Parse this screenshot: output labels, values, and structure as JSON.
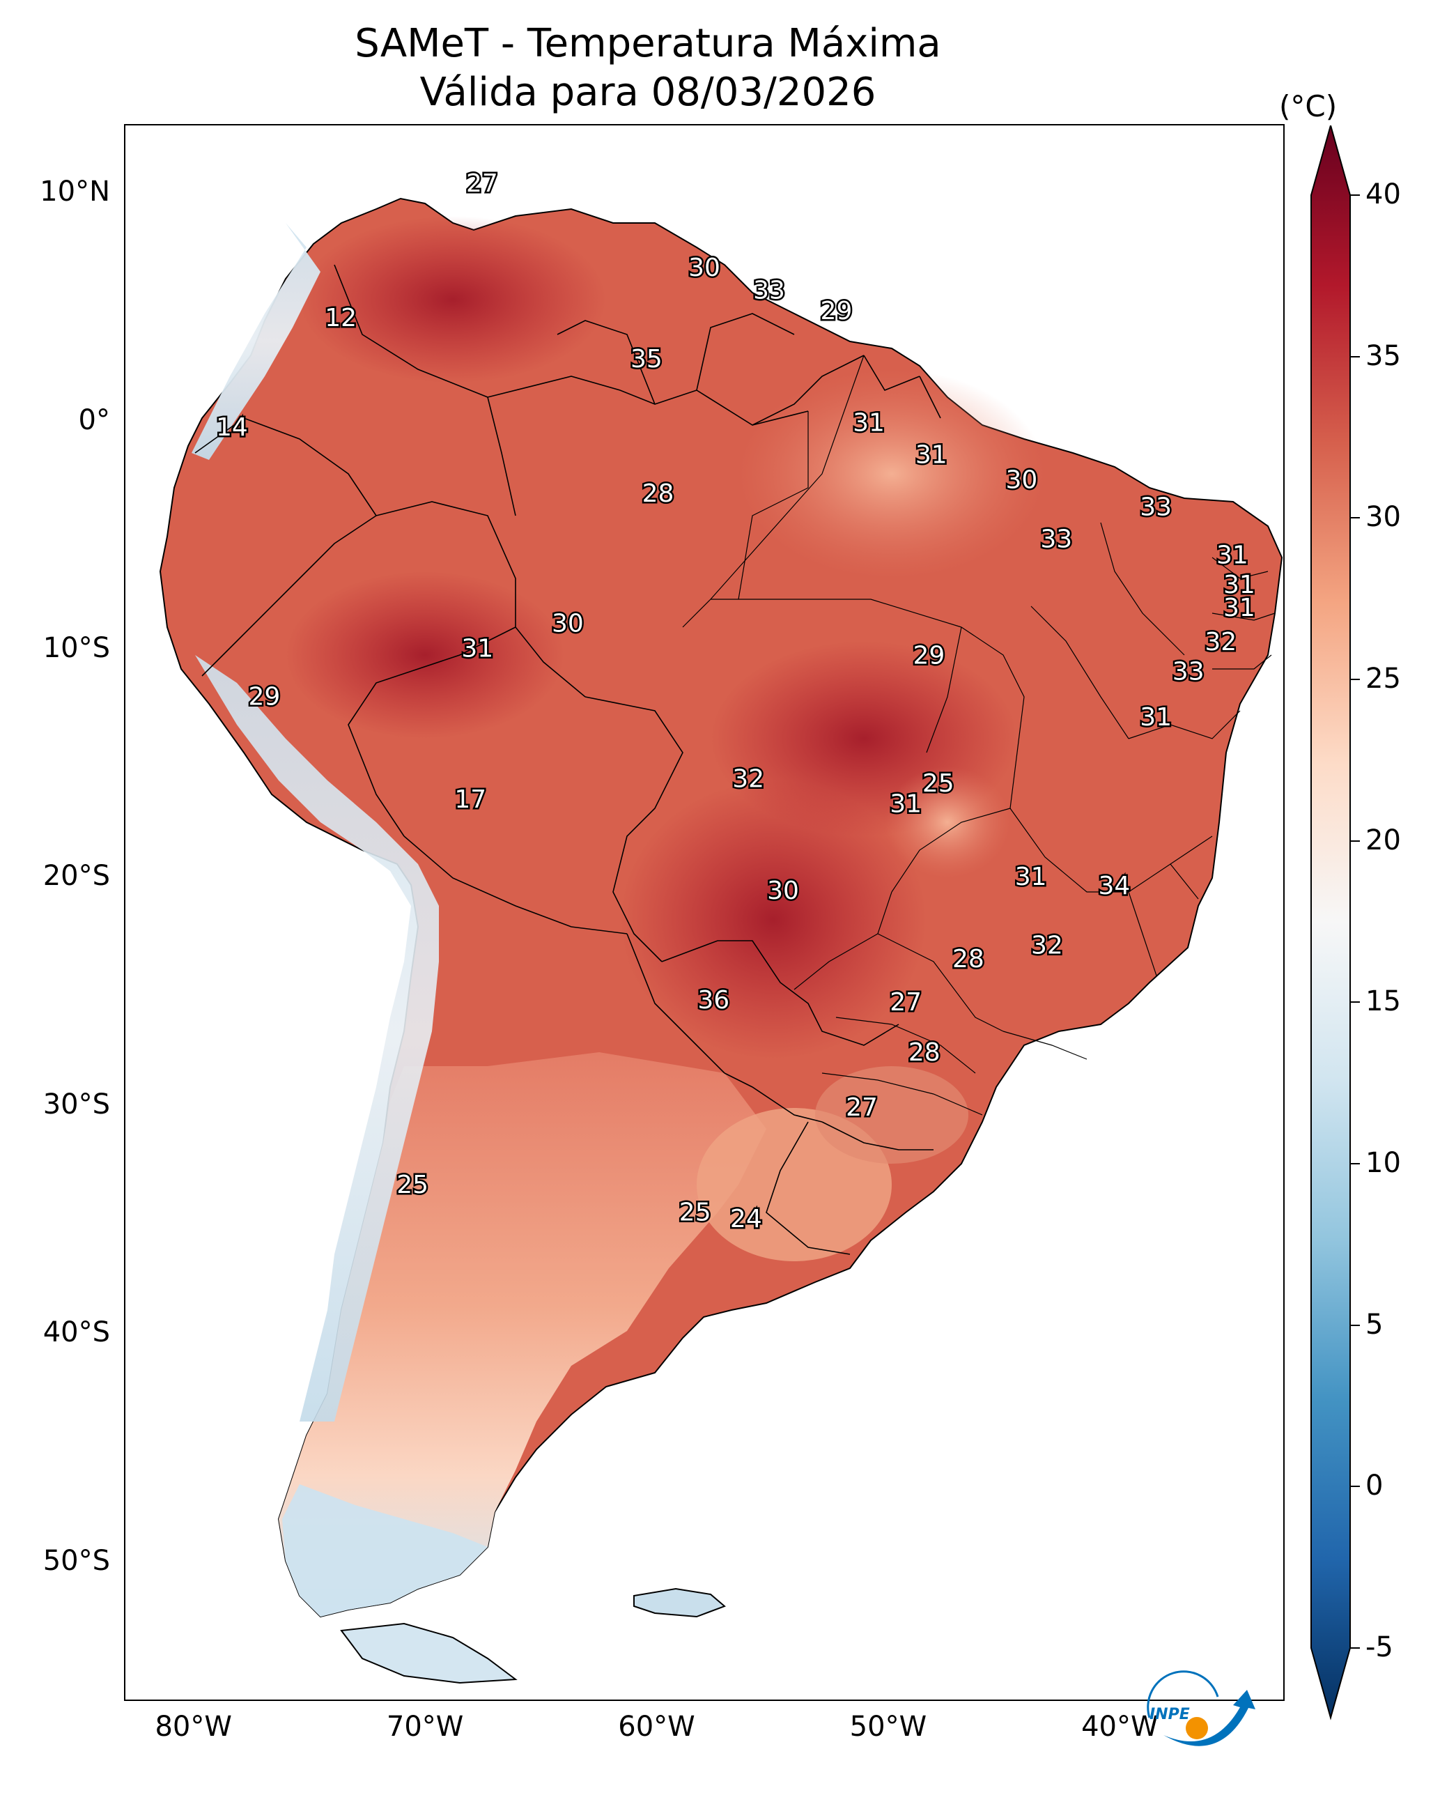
{
  "title": {
    "line1": "SAMeT - Temperatura Máxima",
    "line2": "Válida para 08/03/2026"
  },
  "map": {
    "lon_range": [
      -83,
      -33
    ],
    "lat_range": [
      -56,
      13
    ],
    "lat_ticks": [
      {
        "value": 10,
        "label": "10°N"
      },
      {
        "value": 0,
        "label": "0°"
      },
      {
        "value": -10,
        "label": "10°S"
      },
      {
        "value": -20,
        "label": "20°S"
      },
      {
        "value": -30,
        "label": "30°S"
      },
      {
        "value": -40,
        "label": "40°S"
      },
      {
        "value": -50,
        "label": "50°S"
      }
    ],
    "lon_ticks": [
      {
        "value": -80,
        "label": "80°W"
      },
      {
        "value": -70,
        "label": "70°W"
      },
      {
        "value": -60,
        "label": "60°W"
      },
      {
        "value": -50,
        "label": "50°W"
      },
      {
        "value": -40,
        "label": "40°W"
      }
    ],
    "city_values": [
      {
        "lon": -67.6,
        "lat": 10.5,
        "label": "27"
      },
      {
        "lon": -73.7,
        "lat": 4.6,
        "label": "12"
      },
      {
        "lon": -58.0,
        "lat": 6.8,
        "label": "30"
      },
      {
        "lon": -55.2,
        "lat": 5.8,
        "label": "33"
      },
      {
        "lon": -52.3,
        "lat": 4.9,
        "label": "29"
      },
      {
        "lon": -60.5,
        "lat": 2.8,
        "label": "35"
      },
      {
        "lon": -78.4,
        "lat": -0.2,
        "label": "14"
      },
      {
        "lon": -50.9,
        "lat": 0.0,
        "label": "31"
      },
      {
        "lon": -48.2,
        "lat": -1.4,
        "label": "31"
      },
      {
        "lon": -44.3,
        "lat": -2.5,
        "label": "30"
      },
      {
        "lon": -60.0,
        "lat": -3.1,
        "label": "28"
      },
      {
        "lon": -38.5,
        "lat": -3.7,
        "label": "33"
      },
      {
        "lon": -42.8,
        "lat": -5.1,
        "label": "33"
      },
      {
        "lon": -35.2,
        "lat": -5.8,
        "label": "31"
      },
      {
        "lon": -34.9,
        "lat": -7.1,
        "label": "31"
      },
      {
        "lon": -34.9,
        "lat": -8.1,
        "label": "31"
      },
      {
        "lon": -63.9,
        "lat": -8.8,
        "label": "30"
      },
      {
        "lon": -67.8,
        "lat": -9.9,
        "label": "31"
      },
      {
        "lon": -35.7,
        "lat": -9.6,
        "label": "32"
      },
      {
        "lon": -48.3,
        "lat": -10.2,
        "label": "29"
      },
      {
        "lon": -37.1,
        "lat": -10.9,
        "label": "33"
      },
      {
        "lon": -77.0,
        "lat": -12.0,
        "label": "29"
      },
      {
        "lon": -38.5,
        "lat": -12.9,
        "label": "31"
      },
      {
        "lon": -56.1,
        "lat": -15.6,
        "label": "32"
      },
      {
        "lon": -47.9,
        "lat": -15.8,
        "label": "25"
      },
      {
        "lon": -49.3,
        "lat": -16.7,
        "label": "31"
      },
      {
        "lon": -68.1,
        "lat": -16.5,
        "label": "17"
      },
      {
        "lon": -54.6,
        "lat": -20.5,
        "label": "30"
      },
      {
        "lon": -43.9,
        "lat": -19.9,
        "label": "31"
      },
      {
        "lon": -40.3,
        "lat": -20.3,
        "label": "34"
      },
      {
        "lon": -43.2,
        "lat": -22.9,
        "label": "32"
      },
      {
        "lon": -46.6,
        "lat": -23.5,
        "label": "28"
      },
      {
        "lon": -57.6,
        "lat": -25.3,
        "label": "36"
      },
      {
        "lon": -49.3,
        "lat": -25.4,
        "label": "27"
      },
      {
        "lon": -48.5,
        "lat": -27.6,
        "label": "28"
      },
      {
        "lon": -51.2,
        "lat": -30.0,
        "label": "27"
      },
      {
        "lon": -70.6,
        "lat": -33.4,
        "label": "25"
      },
      {
        "lon": -58.4,
        "lat": -34.6,
        "label": "25"
      },
      {
        "lon": -56.2,
        "lat": -34.9,
        "label": "24"
      }
    ]
  },
  "colorbar": {
    "unit": "(°C)",
    "ticks": [
      {
        "value": 40,
        "label": "40"
      },
      {
        "value": 35,
        "label": "35"
      },
      {
        "value": 30,
        "label": "30"
      },
      {
        "value": 25,
        "label": "25"
      },
      {
        "value": 20,
        "label": "20"
      },
      {
        "value": 15,
        "label": "15"
      },
      {
        "value": 10,
        "label": "10"
      },
      {
        "value": 5,
        "label": "5"
      },
      {
        "value": 0,
        "label": "0"
      },
      {
        "value": -5,
        "label": "-5"
      }
    ],
    "range": [
      -5,
      40
    ],
    "colors": [
      "#053061",
      "#2166ac",
      "#4393c3",
      "#92c5de",
      "#d1e5f0",
      "#f7f7f7",
      "#fddbc7",
      "#f4a582",
      "#d6604d",
      "#b2182b",
      "#67001f"
    ]
  },
  "logo": {
    "text": "INPE",
    "orange": "#f39200",
    "blue": "#0072bc"
  }
}
